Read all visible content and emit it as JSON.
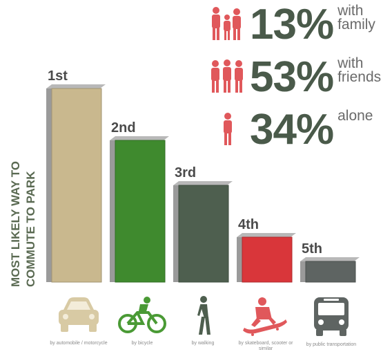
{
  "chart_data": {
    "type": "bar",
    "ylabel": "MOST LIKELY WAY TO COMMUTE TO PARK",
    "categories": [
      "1st",
      "2nd",
      "3rd",
      "4th",
      "5th"
    ],
    "values": [
      280,
      205,
      140,
      65,
      30
    ],
    "colors": [
      "#c9b88e",
      "#3f8a2e",
      "#4e5f4f",
      "#d9363a",
      "#5e6462"
    ],
    "modes": [
      {
        "icon": "car-icon",
        "caption": "by automobile / motorcycle",
        "color": "#d8caa4"
      },
      {
        "icon": "bicycle-icon",
        "caption": "by bicycle",
        "color": "#4a9a35"
      },
      {
        "icon": "walking-person-icon",
        "caption": "by walking",
        "color": "#4e5f4f"
      },
      {
        "icon": "skateboard-icon",
        "caption": "by skateboard, scooter or similar",
        "color": "#e0585b"
      },
      {
        "icon": "bus-icon",
        "caption": "by public transportation",
        "color": "#5e6462"
      }
    ]
  },
  "stats": [
    {
      "percent": "13%",
      "label": "with\nfamily"
    },
    {
      "percent": "53%",
      "label": "with\nfriends"
    },
    {
      "percent": "34%",
      "label": "alone"
    }
  ],
  "accent_color": "#e0585b"
}
